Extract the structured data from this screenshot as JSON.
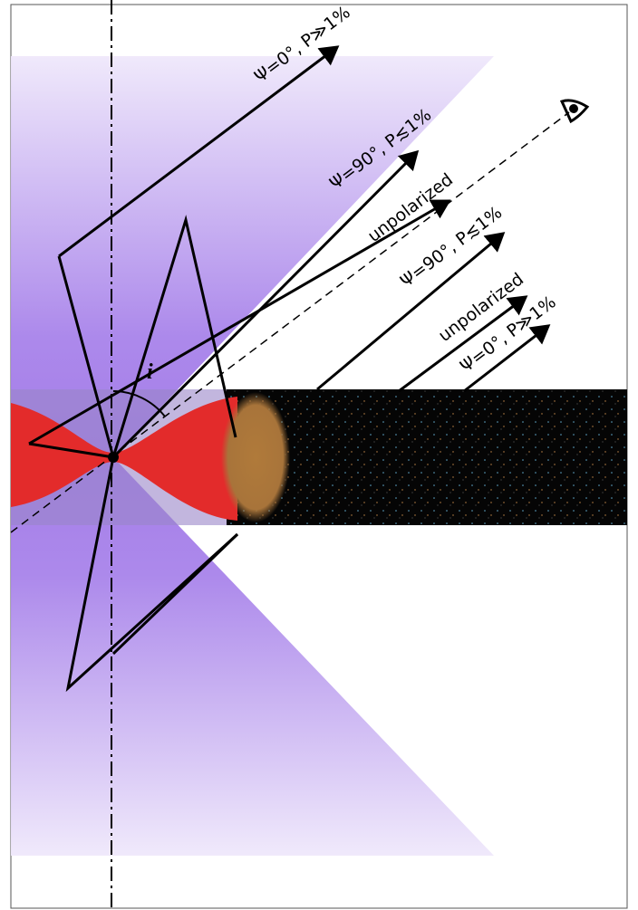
{
  "labels": {
    "ray_1": "Ψ=0°, P≫1%",
    "ray_2": "Ψ=90°, P≲1%",
    "ray_3": "unpolarized",
    "ray_4": "Ψ=90°, P≲1%",
    "ray_5": "unpolarized",
    "ray_6": "Ψ=0°, P≫1%",
    "angle": "i"
  }
}
